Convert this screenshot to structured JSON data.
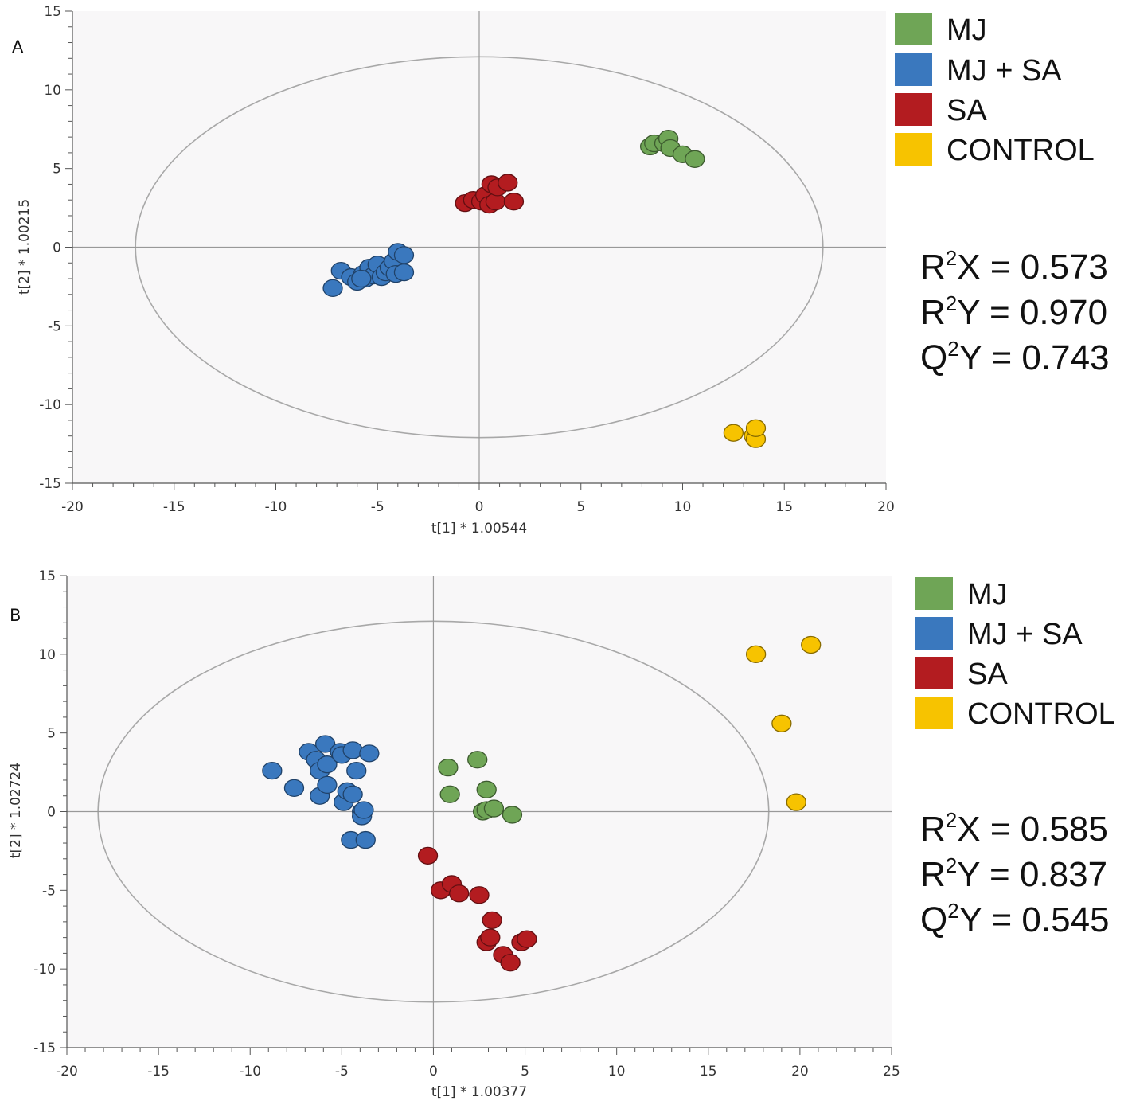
{
  "colors": {
    "MJ": "#6fa556",
    "MJ + SA": "#3a78be",
    "SA": "#b31c20",
    "CONTROL": "#f7c300",
    "plot_bg": "#f8f7f8",
    "ellipse": "#a8a8a8"
  },
  "chart_data": [
    {
      "type": "scatter",
      "panel_label": "A",
      "xlabel": "t[1] * 1.00544",
      "ylabel": "t[2] * 1.00215",
      "xlim": [
        -20,
        20
      ],
      "ylim": [
        -15,
        15
      ],
      "xticks": [
        -20,
        -15,
        -10,
        -5,
        0,
        5,
        10,
        15,
        20
      ],
      "yticks": [
        15,
        10,
        5,
        0,
        -5,
        -10,
        -15
      ],
      "ellipse": {
        "rx": 16.9,
        "ry": 12.1
      },
      "legend": [
        {
          "name": "MJ",
          "label": "MJ"
        },
        {
          "name": "MJ + SA",
          "label": "MJ + SA"
        },
        {
          "name": "SA",
          "label": "SA"
        },
        {
          "name": "CONTROL",
          "label": "CONTROL"
        }
      ],
      "stats": [
        {
          "label": "R",
          "sup": "2",
          "rest": "X = 0.573"
        },
        {
          "label": "R",
          "sup": "2",
          "rest": "Y = 0.970"
        },
        {
          "label": "Q",
          "sup": "2",
          "rest": "Y = 0.743"
        }
      ],
      "series": [
        {
          "name": "MJ + SA",
          "points": [
            [
              -7.2,
              -2.6
            ],
            [
              -6.8,
              -1.5
            ],
            [
              -6.3,
              -1.9
            ],
            [
              -6.0,
              -2.2
            ],
            [
              -5.7,
              -1.7
            ],
            [
              -5.6,
              -2.0
            ],
            [
              -5.4,
              -1.3
            ],
            [
              -5.2,
              -1.8
            ],
            [
              -5.0,
              -1.1
            ],
            [
              -4.8,
              -1.9
            ],
            [
              -4.6,
              -1.6
            ],
            [
              -4.4,
              -1.3
            ],
            [
              -4.2,
              -0.9
            ],
            [
              -4.1,
              -1.7
            ],
            [
              -4.0,
              -0.3
            ],
            [
              -3.7,
              -1.6
            ],
            [
              -3.7,
              -0.5
            ],
            [
              -5.8,
              -2.0
            ]
          ]
        },
        {
          "name": "SA",
          "points": [
            [
              -0.7,
              2.8
            ],
            [
              -0.3,
              3.0
            ],
            [
              0.1,
              2.9
            ],
            [
              0.3,
              3.3
            ],
            [
              0.5,
              2.7
            ],
            [
              0.6,
              4.0
            ],
            [
              0.8,
              2.9
            ],
            [
              0.9,
              3.8
            ],
            [
              1.4,
              4.1
            ],
            [
              1.7,
              2.9
            ]
          ]
        },
        {
          "name": "MJ",
          "points": [
            [
              8.4,
              6.4
            ],
            [
              8.6,
              6.6
            ],
            [
              9.1,
              6.6
            ],
            [
              9.3,
              6.9
            ],
            [
              9.4,
              6.3
            ],
            [
              10.0,
              5.9
            ],
            [
              10.6,
              5.6
            ]
          ]
        },
        {
          "name": "CONTROL",
          "points": [
            [
              12.5,
              -11.8
            ],
            [
              13.5,
              -12.0
            ],
            [
              13.6,
              -12.2
            ],
            [
              13.6,
              -11.5
            ]
          ]
        }
      ]
    },
    {
      "type": "scatter",
      "panel_label": "B",
      "xlabel": "t[1] * 1.00377",
      "ylabel": "t[2] * 1.02724",
      "xlim": [
        -20,
        25
      ],
      "ylim": [
        -15,
        15
      ],
      "xticks": [
        -20,
        -15,
        -10,
        -5,
        0,
        5,
        10,
        15,
        20,
        25
      ],
      "yticks": [
        15,
        10,
        5,
        0,
        -5,
        -10,
        -15
      ],
      "ellipse": {
        "rx": 18.3,
        "ry": 12.1
      },
      "legend": [
        {
          "name": "MJ",
          "label": "MJ"
        },
        {
          "name": "MJ + SA",
          "label": "MJ + SA"
        },
        {
          "name": "SA",
          "label": "SA"
        },
        {
          "name": "CONTROL",
          "label": "CONTROL"
        }
      ],
      "stats": [
        {
          "label": "R",
          "sup": "2",
          "rest": "X = 0.585"
        },
        {
          "label": "R",
          "sup": "2",
          "rest": "Y = 0.837"
        },
        {
          "label": "Q",
          "sup": "2",
          "rest": "Y = 0.545"
        }
      ],
      "series": [
        {
          "name": "MJ + SA",
          "points": [
            [
              -8.8,
              2.6
            ],
            [
              -7.6,
              1.5
            ],
            [
              -6.8,
              3.8
            ],
            [
              -6.4,
              3.3
            ],
            [
              -6.2,
              2.6
            ],
            [
              -6.2,
              1.0
            ],
            [
              -5.9,
              4.3
            ],
            [
              -5.8,
              3.0
            ],
            [
              -5.8,
              1.7
            ],
            [
              -5.1,
              3.8
            ],
            [
              -5.0,
              3.6
            ],
            [
              -4.9,
              0.6
            ],
            [
              -4.7,
              1.3
            ],
            [
              -4.5,
              -1.8
            ],
            [
              -4.4,
              3.9
            ],
            [
              -4.4,
              1.1
            ],
            [
              -4.2,
              2.6
            ],
            [
              -3.9,
              0.0
            ],
            [
              -3.9,
              -0.3
            ],
            [
              -3.8,
              0.1
            ],
            [
              -3.7,
              -1.8
            ],
            [
              -3.5,
              3.7
            ]
          ]
        },
        {
          "name": "MJ",
          "points": [
            [
              0.8,
              2.8
            ],
            [
              0.9,
              1.1
            ],
            [
              2.4,
              3.3
            ],
            [
              2.7,
              0.0
            ],
            [
              2.9,
              0.1
            ],
            [
              2.9,
              1.4
            ],
            [
              3.3,
              0.2
            ],
            [
              4.3,
              -0.2
            ]
          ]
        },
        {
          "name": "SA",
          "points": [
            [
              -0.3,
              -2.8
            ],
            [
              0.4,
              -5.0
            ],
            [
              1.0,
              -4.6
            ],
            [
              1.4,
              -5.2
            ],
            [
              2.5,
              -5.3
            ],
            [
              2.9,
              -8.3
            ],
            [
              3.1,
              -8.0
            ],
            [
              3.2,
              -6.9
            ],
            [
              3.8,
              -9.1
            ],
            [
              4.2,
              -9.6
            ],
            [
              4.8,
              -8.3
            ],
            [
              5.1,
              -8.1
            ]
          ]
        },
        {
          "name": "CONTROL",
          "points": [
            [
              17.6,
              10.0
            ],
            [
              19.0,
              5.6
            ],
            [
              19.8,
              0.6
            ],
            [
              20.6,
              10.6
            ]
          ]
        }
      ]
    }
  ]
}
